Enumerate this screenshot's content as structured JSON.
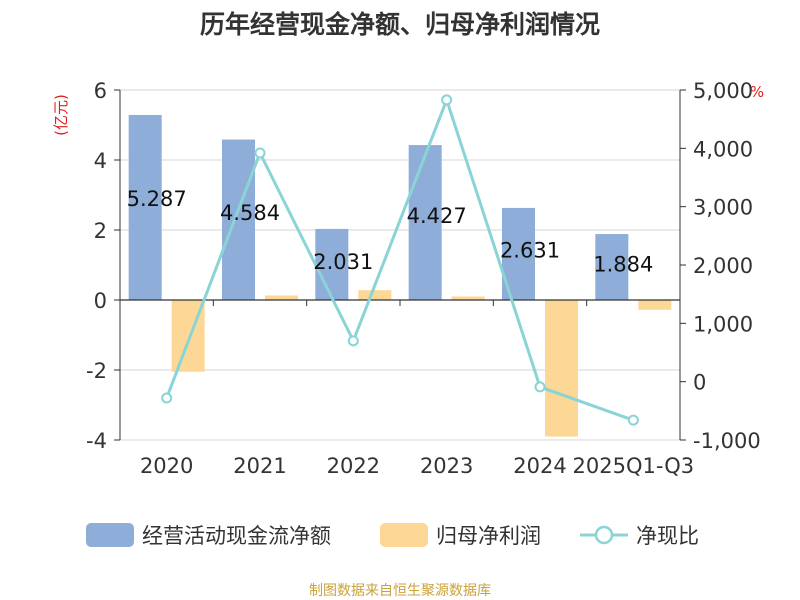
{
  "chart_data": {
    "type": "bar",
    "title": "历年经营现金净额、归母净利润情况",
    "categories": [
      "2020",
      "2021",
      "2022",
      "2023",
      "2024",
      "2025Q1-Q3"
    ],
    "series": [
      {
        "name": "经营活动现金流净额",
        "type": "bar",
        "axis": "left",
        "color": "#8eadd9",
        "values": [
          5.287,
          4.584,
          2.031,
          4.427,
          2.631,
          1.884
        ],
        "labels": [
          "5.287",
          "4.584",
          "2.031",
          "4.427",
          "2.631",
          "1.884"
        ]
      },
      {
        "name": "归母净利润",
        "type": "bar",
        "axis": "left",
        "color": "#fdd795",
        "values": [
          -2.05,
          0.13,
          0.28,
          0.1,
          -3.9,
          -0.28
        ]
      },
      {
        "name": "净现比",
        "type": "line",
        "axis": "right",
        "color": "#8ad4d6",
        "values": [
          -280,
          3920,
          700,
          4830,
          -90,
          -660
        ]
      }
    ],
    "y_left": {
      "label": "(亿元)",
      "ylim": [
        -4,
        6
      ],
      "ticks": [
        "-4",
        "-2",
        "0",
        "2",
        "4",
        "6"
      ]
    },
    "y_right": {
      "label": "%",
      "ylim": [
        -1000,
        5000
      ],
      "ticks": [
        "-1,000",
        "0",
        "1,000",
        "2,000",
        "3,000",
        "4,000",
        "5,000"
      ]
    },
    "grid": true,
    "legend_position": "bottom"
  },
  "footer": {
    "source": "制图数据来自恒生聚源数据库"
  }
}
